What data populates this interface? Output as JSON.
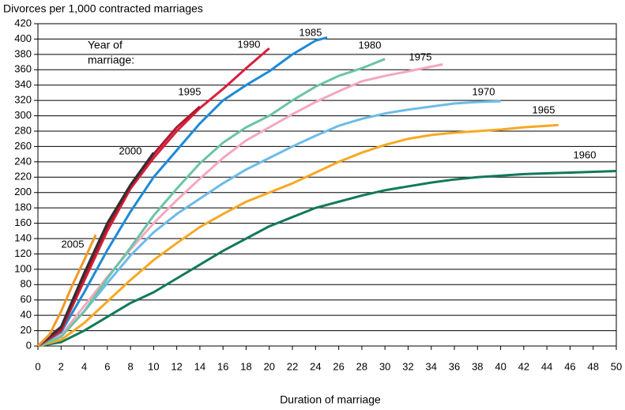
{
  "chart_data": {
    "type": "line",
    "title": "Divorces per 1,000 contracted marriages",
    "xlabel": "Duration of marriage",
    "annotation": [
      "Year of",
      "marriage:"
    ],
    "xlim": [
      0,
      50
    ],
    "ylim": [
      0,
      420
    ],
    "xticks": [
      0,
      2,
      4,
      6,
      8,
      10,
      12,
      14,
      16,
      18,
      20,
      22,
      24,
      26,
      28,
      30,
      32,
      34,
      36,
      38,
      40,
      42,
      44,
      46,
      48,
      50
    ],
    "yticks": [
      0,
      20,
      40,
      60,
      80,
      100,
      120,
      140,
      160,
      180,
      200,
      220,
      240,
      260,
      280,
      300,
      320,
      340,
      360,
      380,
      400,
      420
    ],
    "grid": true,
    "series": [
      {
        "name": "1960",
        "color": "#13795b",
        "x": [
          0,
          2,
          4,
          6,
          8,
          10,
          12,
          14,
          16,
          18,
          20,
          22,
          24,
          26,
          28,
          30,
          32,
          34,
          36,
          38,
          40,
          42,
          44,
          46,
          48,
          50
        ],
        "values": [
          0,
          5,
          20,
          38,
          56,
          70,
          88,
          106,
          124,
          140,
          156,
          168,
          180,
          188,
          196,
          203,
          208,
          213,
          217,
          220,
          222,
          224,
          225,
          226,
          227,
          228
        ]
      },
      {
        "name": "1965",
        "color": "#f7a823",
        "x": [
          0,
          2,
          4,
          6,
          8,
          10,
          12,
          14,
          16,
          18,
          20,
          22,
          24,
          26,
          28,
          30,
          32,
          34,
          36,
          38,
          40,
          42,
          44,
          45
        ],
        "values": [
          0,
          8,
          30,
          58,
          86,
          112,
          134,
          155,
          172,
          188,
          200,
          212,
          226,
          240,
          252,
          262,
          270,
          275,
          278,
          280,
          282,
          285,
          287,
          288
        ]
      },
      {
        "name": "1970",
        "color": "#6cbce8",
        "x": [
          0,
          2,
          4,
          6,
          8,
          10,
          12,
          14,
          16,
          18,
          20,
          22,
          24,
          26,
          28,
          30,
          32,
          34,
          36,
          38,
          40
        ],
        "values": [
          0,
          12,
          45,
          82,
          118,
          148,
          172,
          192,
          212,
          230,
          245,
          260,
          274,
          287,
          296,
          303,
          308,
          312,
          316,
          318,
          319
        ]
      },
      {
        "name": "1975",
        "color": "#f4a8bc",
        "x": [
          0,
          2,
          4,
          6,
          8,
          10,
          12,
          14,
          16,
          18,
          20,
          22,
          24,
          26,
          28,
          30,
          32,
          34,
          35
        ],
        "values": [
          0,
          14,
          52,
          90,
          126,
          160,
          190,
          218,
          245,
          268,
          285,
          302,
          318,
          332,
          345,
          352,
          358,
          364,
          367
        ]
      },
      {
        "name": "1980",
        "color": "#6cc3a8",
        "x": [
          0,
          2,
          4,
          6,
          8,
          10,
          12,
          14,
          16,
          18,
          20,
          22,
          24,
          26,
          28,
          30
        ],
        "values": [
          0,
          12,
          45,
          88,
          128,
          170,
          205,
          238,
          265,
          285,
          300,
          320,
          338,
          352,
          362,
          374
        ]
      },
      {
        "name": "1985",
        "color": "#1e8ad6",
        "x": [
          0,
          2,
          4,
          6,
          8,
          10,
          12,
          14,
          16,
          18,
          20,
          22,
          24,
          25
        ],
        "values": [
          0,
          18,
          70,
          125,
          175,
          220,
          255,
          290,
          320,
          340,
          358,
          380,
          398,
          402
        ]
      },
      {
        "name": "1990",
        "color": "#d8203c",
        "x": [
          0,
          2,
          4,
          6,
          8,
          10,
          12,
          14,
          16,
          18,
          20
        ],
        "values": [
          0,
          20,
          85,
          150,
          205,
          245,
          280,
          310,
          335,
          362,
          388
        ]
      },
      {
        "name": "1995",
        "color": "#b0182e",
        "x": [
          0,
          2,
          4,
          6,
          8,
          10,
          12,
          14
        ],
        "values": [
          0,
          22,
          90,
          155,
          208,
          250,
          285,
          312
        ]
      },
      {
        "name": "2000",
        "color": "#303030",
        "x": [
          0,
          2,
          4,
          6,
          8,
          10
        ],
        "values": [
          0,
          25,
          95,
          160,
          210,
          252
        ]
      },
      {
        "name": "2005",
        "color": "#f09a28",
        "x": [
          0,
          1,
          2,
          3,
          4,
          5
        ],
        "values": [
          0,
          15,
          45,
          80,
          112,
          145
        ]
      }
    ]
  }
}
